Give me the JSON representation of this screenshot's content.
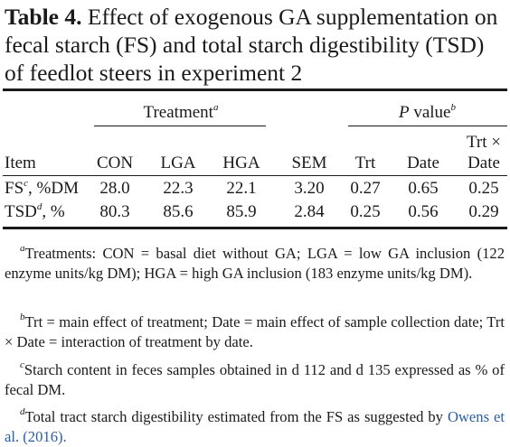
{
  "caption": {
    "label": "Table 4.",
    "text": "Effect of exogenous GA supplementation on fecal starch (FS) and total starch digestibility (TSD) of feedlot steers in experiment 2"
  },
  "headers": {
    "treatment_group": "Treatment",
    "treatment_group_sup": "a",
    "p_group_p": "P",
    "p_group_rest": " value",
    "p_group_sup": "b",
    "trt_x_line1": "Trt ×",
    "columns": [
      "Item",
      "CON",
      "LGA",
      "HGA",
      "SEM",
      "Trt",
      "Date",
      "Date"
    ]
  },
  "rows": [
    {
      "item": "FS",
      "item_sup": "c",
      "item_unit": ", %DM",
      "values": [
        "28.0",
        "22.3",
        "22.1",
        "3.20",
        "0.27",
        "0.65",
        "0.25"
      ]
    },
    {
      "item": "TSD",
      "item_sup": "d",
      "item_unit": ", %",
      "values": [
        "80.3",
        "85.6",
        "85.9",
        "2.84",
        "0.25",
        "0.56",
        "0.29"
      ]
    }
  ],
  "footnotes": [
    {
      "sup": "a",
      "text": "Treatments: CON = basal diet without GA; LGA = low GA inclusion (122 enzyme units/kg DM); HGA = high GA inclusion (183 enzyme units/kg DM)."
    },
    {
      "sup": "b",
      "text": "Trt = main effect of treatment; Date = main effect of sample collection date; Trt × Date = interaction of treatment by date."
    },
    {
      "sup": "c",
      "text": "Starch content in feces samples obtained in d 112 and d 135 expressed as % of fecal DM."
    },
    {
      "sup": "d",
      "text": "Total tract starch digestibility estimated from the FS as suggested by ",
      "link": "Owens et al. (2016).",
      "link_color": "#2b5fa5"
    }
  ]
}
